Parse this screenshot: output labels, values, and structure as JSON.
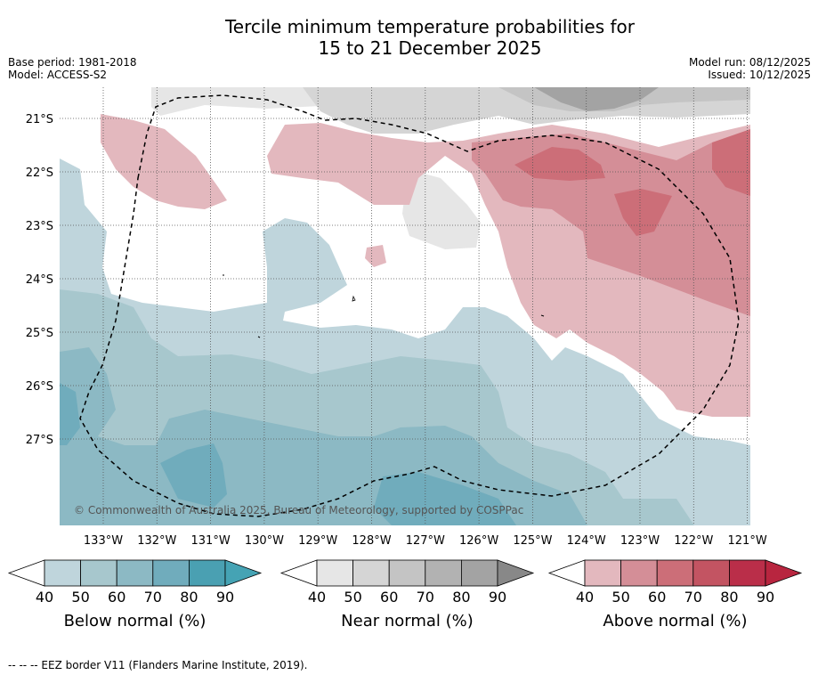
{
  "title_line1": "Tercile minimum temperature probabilities for",
  "title_line2": "15 to 21 December 2025",
  "base_period": "Base period: 1981-2018",
  "model": "Model: ACCESS-S2",
  "model_run": "Model run: 08/12/2025",
  "issued": "Issued: 10/12/2025",
  "copyright": "© Commonwealth of Australia 2025, Bureau of Meteorology, supported by COSPPac",
  "footnote": "--  --  -- EEZ border V11 (Flanders Marine Institute, 2019).",
  "chart_data": {
    "type": "heatmap",
    "x_ticks": [
      "133°W",
      "132°W",
      "131°W",
      "130°W",
      "129°W",
      "128°W",
      "127°W",
      "126°W",
      "125°W",
      "124°W",
      "123°W",
      "122°W",
      "121°W"
    ],
    "y_ticks": [
      "21°S",
      "22°S",
      "23°S",
      "24°S",
      "25°S",
      "26°S",
      "27°S"
    ],
    "colorbars": [
      {
        "label": "Below normal (%)",
        "ticks": [
          "40",
          "50",
          "60",
          "70",
          "80",
          "90"
        ],
        "colors": [
          "#bfd5dc",
          "#a7c7cd",
          "#8cb9c4",
          "#70acbc",
          "#4aa0b2"
        ],
        "end": "#45a3b4"
      },
      {
        "label": "Near normal (%)",
        "ticks": [
          "40",
          "50",
          "60",
          "70",
          "80",
          "90"
        ],
        "colors": [
          "#e6e6e6",
          "#d5d5d5",
          "#c4c4c4",
          "#b2b2b2",
          "#a3a3a3"
        ],
        "end": "#888888"
      },
      {
        "label": "Above normal (%)",
        "ticks": [
          "40",
          "50",
          "60",
          "70",
          "80",
          "90"
        ],
        "colors": [
          "#e3b8be",
          "#d48e97",
          "#cc6e78",
          "#c35462",
          "#ba2e49"
        ],
        "end": "#b8253f"
      }
    ]
  }
}
